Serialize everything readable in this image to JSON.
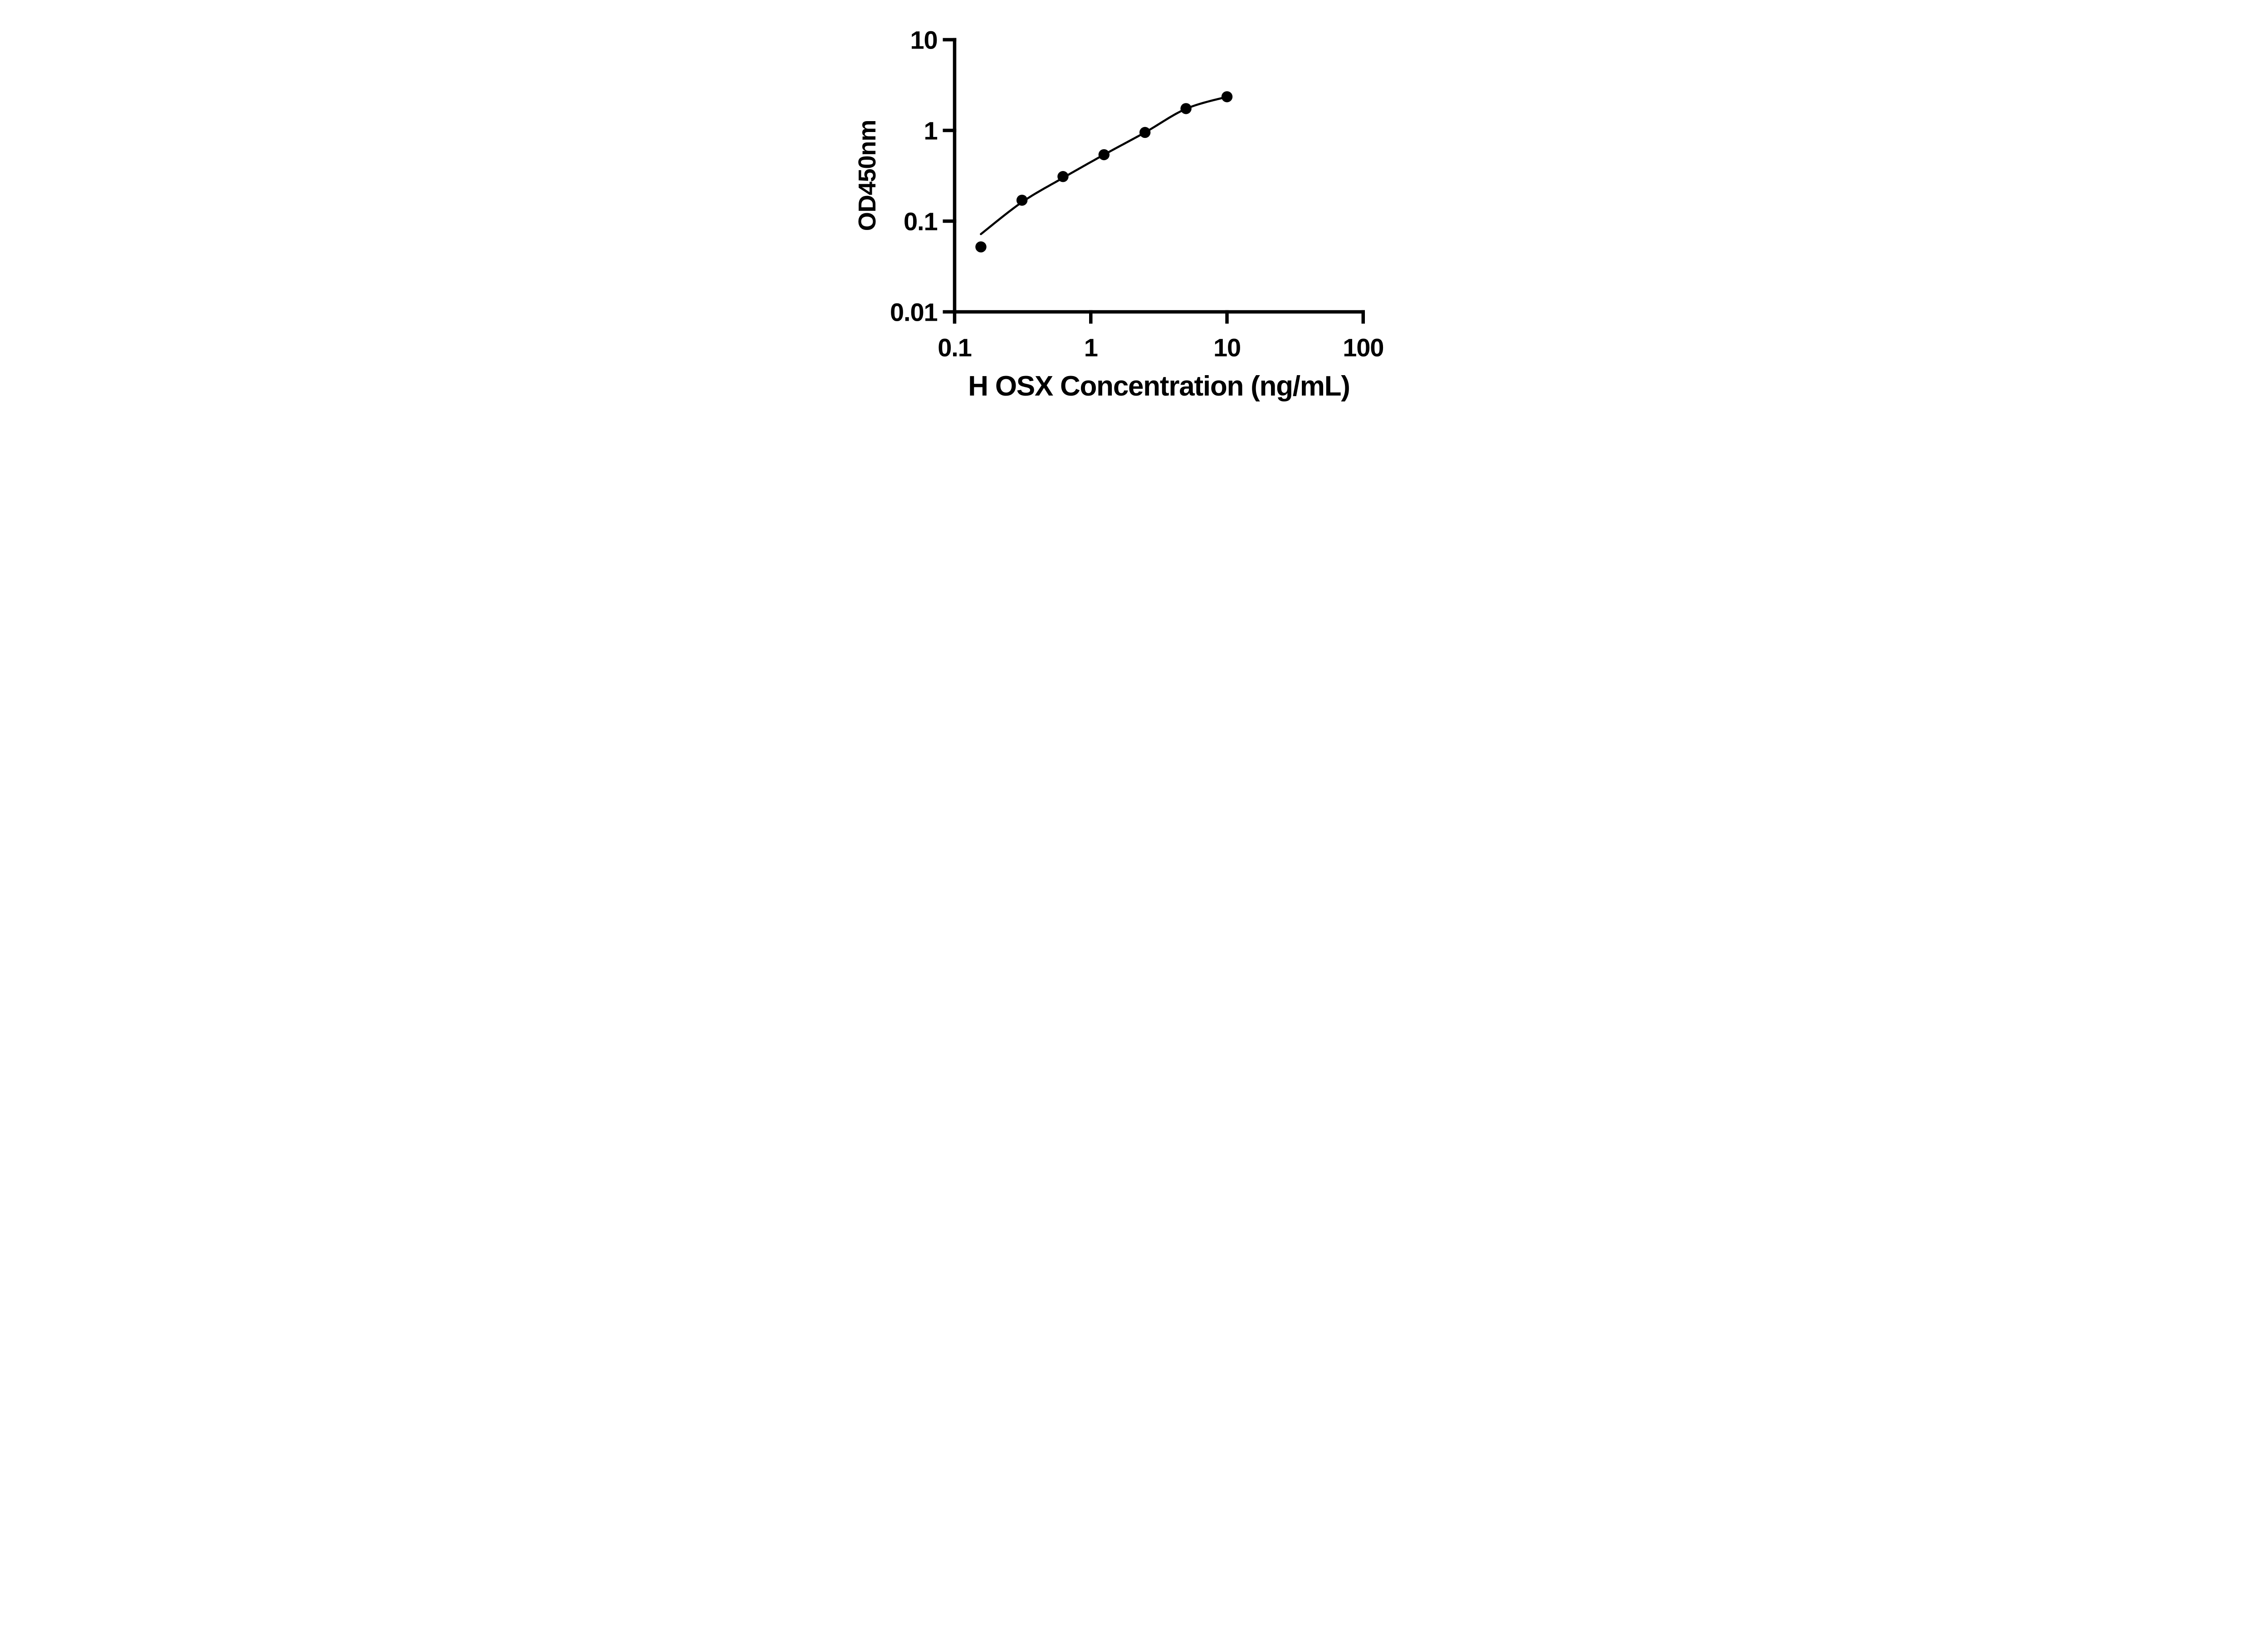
{
  "page": {
    "background_color": "#ffffff",
    "ink_color": "#000000"
  },
  "chart_data": {
    "type": "scatter",
    "title": "",
    "xlabel": "H OSX Concentration (ng/mL)",
    "ylabel": "OD450nm",
    "x_scale": "log10",
    "y_scale": "log10",
    "xlim": [
      0.1,
      100
    ],
    "ylim": [
      0.01,
      10
    ],
    "x_ticks": {
      "values": [
        0.1,
        1,
        10,
        100
      ],
      "labels": [
        "0.1",
        "1",
        "10",
        "100"
      ]
    },
    "y_ticks": {
      "values": [
        10,
        1,
        0.1,
        0.01
      ],
      "labels": [
        "10",
        "1",
        "0.1",
        "0.01"
      ]
    },
    "grid": false,
    "legend": "none",
    "marker_color": "#000000",
    "line_color": "#000000",
    "series": [
      {
        "name": "standard-points",
        "type": "scatter",
        "marker": "filled-circle",
        "color": "#000000",
        "points": [
          {
            "x": 0.156,
            "y": 0.052
          },
          {
            "x": 0.3125,
            "y": 0.17
          },
          {
            "x": 0.625,
            "y": 0.31
          },
          {
            "x": 1.25,
            "y": 0.54
          },
          {
            "x": 2.5,
            "y": 0.95
          },
          {
            "x": 5,
            "y": 1.74
          },
          {
            "x": 10,
            "y": 2.35
          }
        ]
      },
      {
        "name": "fitted-curve",
        "type": "line",
        "color": "#000000",
        "points": [
          {
            "x": 0.156,
            "y": 0.072
          },
          {
            "x": 0.3125,
            "y": 0.162
          },
          {
            "x": 0.625,
            "y": 0.3
          },
          {
            "x": 1.25,
            "y": 0.54
          },
          {
            "x": 2.5,
            "y": 0.95
          },
          {
            "x": 5,
            "y": 1.73
          },
          {
            "x": 10,
            "y": 2.35
          }
        ]
      }
    ]
  }
}
